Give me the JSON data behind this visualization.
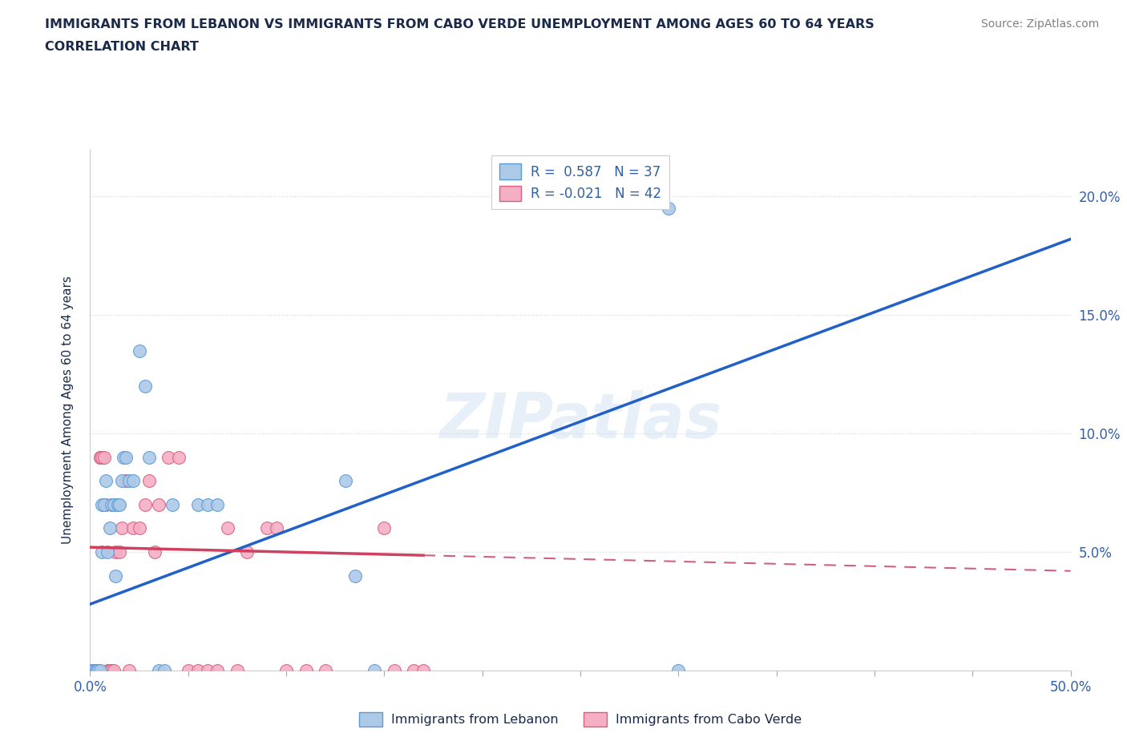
{
  "title_line1": "IMMIGRANTS FROM LEBANON VS IMMIGRANTS FROM CABO VERDE UNEMPLOYMENT AMONG AGES 60 TO 64 YEARS",
  "title_line2": "CORRELATION CHART",
  "source_text": "Source: ZipAtlas.com",
  "ylabel": "Unemployment Among Ages 60 to 64 years",
  "xlim": [
    0.0,
    0.5
  ],
  "ylim": [
    0.0,
    0.22
  ],
  "legend_R1": "R =  0.587",
  "legend_N1": "N = 37",
  "legend_R2": "R = -0.021",
  "legend_N2": "N = 42",
  "series1_color": "#adc9e8",
  "series1_edge": "#5b9bd5",
  "series2_color": "#f4afc4",
  "series2_edge": "#d95f80",
  "trendline1_color": "#2060c8",
  "trendline2_solid_color": "#d04060",
  "trendline2_dash_color": "#d06080",
  "watermark": "ZIPatlas",
  "label1": "Immigrants from Lebanon",
  "label2": "Immigrants from Cabo Verde",
  "lebanon_x": [
    0.001,
    0.002,
    0.003,
    0.003,
    0.004,
    0.004,
    0.005,
    0.006,
    0.006,
    0.007,
    0.008,
    0.009,
    0.01,
    0.011,
    0.012,
    0.013,
    0.014,
    0.015,
    0.016,
    0.017,
    0.018,
    0.02,
    0.022,
    0.025,
    0.028,
    0.03,
    0.035,
    0.038,
    0.042,
    0.055,
    0.06,
    0.065,
    0.13,
    0.135,
    0.145,
    0.295,
    0.3
  ],
  "lebanon_y": [
    0.0,
    0.0,
    0.0,
    0.0,
    0.0,
    0.0,
    0.0,
    0.05,
    0.07,
    0.07,
    0.08,
    0.05,
    0.06,
    0.07,
    0.07,
    0.04,
    0.07,
    0.07,
    0.08,
    0.09,
    0.09,
    0.08,
    0.08,
    0.135,
    0.12,
    0.09,
    0.0,
    0.0,
    0.07,
    0.07,
    0.07,
    0.07,
    0.08,
    0.04,
    0.0,
    0.195,
    0.0
  ],
  "caboverde_x": [
    0.001,
    0.002,
    0.003,
    0.004,
    0.005,
    0.005,
    0.006,
    0.007,
    0.008,
    0.009,
    0.01,
    0.011,
    0.012,
    0.013,
    0.015,
    0.016,
    0.018,
    0.02,
    0.022,
    0.025,
    0.028,
    0.03,
    0.033,
    0.035,
    0.04,
    0.045,
    0.05,
    0.055,
    0.06,
    0.065,
    0.07,
    0.075,
    0.08,
    0.09,
    0.095,
    0.1,
    0.11,
    0.12,
    0.15,
    0.155,
    0.165,
    0.17
  ],
  "caboverde_y": [
    0.0,
    0.0,
    0.0,
    0.0,
    0.09,
    0.09,
    0.09,
    0.09,
    0.07,
    0.0,
    0.0,
    0.0,
    0.0,
    0.05,
    0.05,
    0.06,
    0.08,
    0.0,
    0.06,
    0.06,
    0.07,
    0.08,
    0.05,
    0.07,
    0.09,
    0.09,
    0.0,
    0.0,
    0.0,
    0.0,
    0.06,
    0.0,
    0.05,
    0.06,
    0.06,
    0.0,
    0.0,
    0.0,
    0.06,
    0.0,
    0.0,
    0.0
  ],
  "trendline1_x0": 0.0,
  "trendline1_y0": 0.028,
  "trendline1_x1": 0.5,
  "trendline1_y1": 0.182,
  "trendline2_x0": 0.0,
  "trendline2_y0": 0.052,
  "trendline2_x1": 0.5,
  "trendline2_y1": 0.042,
  "trendline2_solid_end": 0.17,
  "background_color": "#ffffff",
  "grid_color": "#d0d8ec",
  "title_color": "#1a2a4a",
  "axis_color": "#3060a0",
  "tick_color": "#3060b0",
  "source_color": "#808080"
}
